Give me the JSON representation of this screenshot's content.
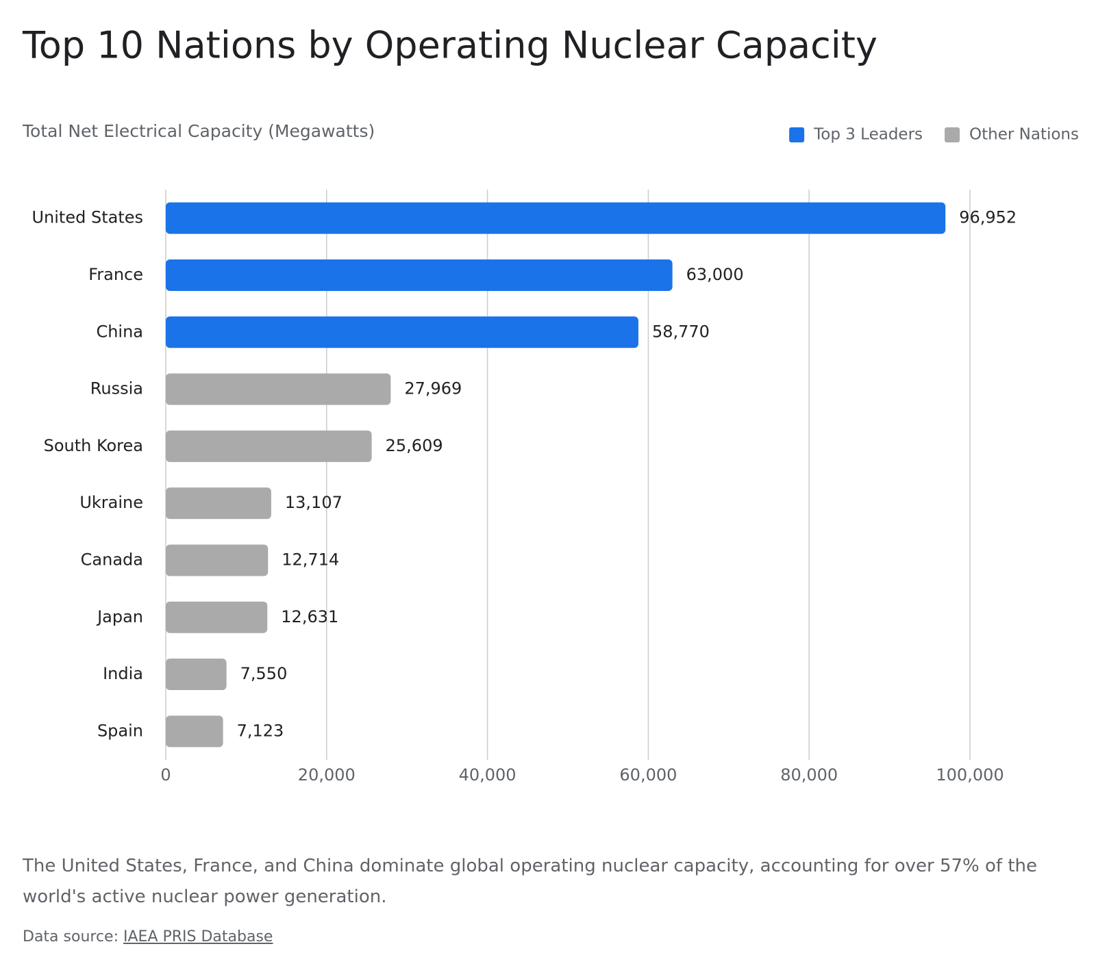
{
  "chart_data": {
    "type": "bar",
    "orientation": "horizontal",
    "title": "Top 10 Nations by Operating Nuclear Capacity",
    "subtitle": "Total Net Electrical Capacity (Megawatts)",
    "categories": [
      "United States",
      "France",
      "China",
      "Russia",
      "South Korea",
      "Ukraine",
      "Canada",
      "Japan",
      "India",
      "Spain"
    ],
    "series": [
      {
        "name": "Top 3 Leaders",
        "color": "#1a73e8",
        "values": [
          96952,
          63000,
          58770,
          null,
          null,
          null,
          null,
          null,
          null,
          null
        ],
        "value_labels": [
          "96,952",
          "63,000",
          "58,770",
          null,
          null,
          null,
          null,
          null,
          null,
          null
        ]
      },
      {
        "name": "Other Nations",
        "color": "#aaaaaa",
        "values": [
          null,
          null,
          null,
          27969,
          25609,
          13107,
          12714,
          12631,
          7550,
          7123
        ],
        "value_labels": [
          null,
          null,
          null,
          "27,969",
          "25,609",
          "13,107",
          "12,714",
          "12,631",
          "7,550",
          "7,123"
        ]
      }
    ],
    "xlim": [
      0,
      100000
    ],
    "xticks": [
      0,
      {
        "value": 20000,
        "label": "20,000"
      },
      {
        "value": 40000,
        "label": "40,000"
      },
      {
        "value": 60000,
        "label": "60,000"
      },
      {
        "value": 80000,
        "label": "80,000"
      },
      {
        "value": 100000,
        "label": "100,000"
      }
    ],
    "grid": true,
    "legend": "top-right",
    "caption": "The United States, France, and China dominate global operating nuclear capacity, accounting for over 57% of the world's active nuclear power generation.",
    "source_label": "Data source:",
    "source_link": "IAEA PRIS Database"
  }
}
